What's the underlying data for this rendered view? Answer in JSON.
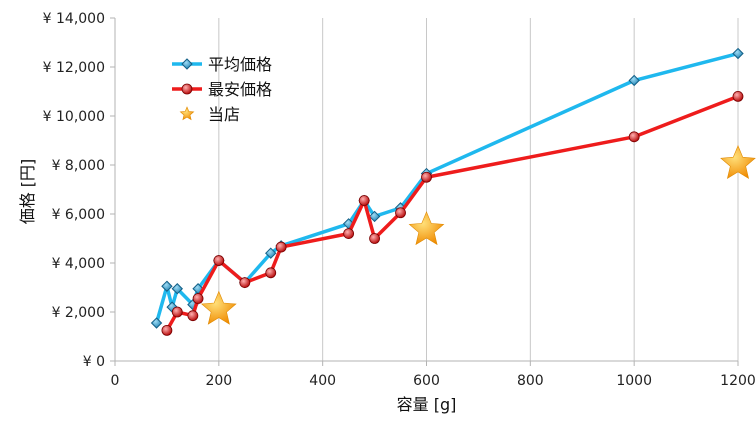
{
  "chart_data": {
    "type": "line",
    "xlabel": "容量 [g]",
    "ylabel": "価格 [円]",
    "xlim": [
      0,
      1200
    ],
    "ylim": [
      0,
      14000
    ],
    "x_ticks": [
      0,
      200,
      400,
      600,
      800,
      1000,
      1200
    ],
    "y_ticks": [
      0,
      2000,
      4000,
      6000,
      8000,
      10000,
      12000,
      14000
    ],
    "x_tick_labels": [
      "0",
      "200",
      "400",
      "600",
      "800",
      "1000",
      "1200"
    ],
    "y_tick_labels": [
      "¥ 0",
      "¥ 2,000",
      "¥ 4,000",
      "¥ 6,000",
      "¥ 8,000",
      "¥ 10,000",
      "¥ 12,000",
      "¥ 14,000"
    ],
    "grid": "vertical",
    "legend_position": "top-left",
    "series": [
      {
        "name": "平均価格",
        "color": "#1fb8ee",
        "marker": "diamond",
        "points": [
          [
            80,
            1550
          ],
          [
            100,
            3050
          ],
          [
            110,
            2200
          ],
          [
            120,
            2950
          ],
          [
            150,
            2300
          ],
          [
            160,
            2950
          ],
          [
            200,
            4100
          ],
          [
            250,
            3200
          ],
          [
            300,
            4400
          ],
          [
            320,
            4700
          ],
          [
            450,
            5600
          ],
          [
            480,
            6550
          ],
          [
            500,
            5900
          ],
          [
            550,
            6250
          ],
          [
            600,
            7650
          ],
          [
            1000,
            11450
          ],
          [
            1200,
            12550
          ]
        ]
      },
      {
        "name": "最安価格",
        "color": "#ee1c1c",
        "marker": "circle",
        "points": [
          [
            100,
            1250
          ],
          [
            120,
            2000
          ],
          [
            150,
            1850
          ],
          [
            160,
            2550
          ],
          [
            200,
            4100
          ],
          [
            250,
            3200
          ],
          [
            300,
            3600
          ],
          [
            320,
            4650
          ],
          [
            450,
            5200
          ],
          [
            480,
            6550
          ],
          [
            500,
            5000
          ],
          [
            550,
            6050
          ],
          [
            600,
            7500
          ],
          [
            1000,
            9150
          ],
          [
            1200,
            10800
          ]
        ]
      },
      {
        "name": "当店",
        "color": "#f7a51d",
        "marker": "star",
        "line": false,
        "points": [
          [
            200,
            2100
          ],
          [
            600,
            5350
          ],
          [
            1200,
            8050
          ]
        ]
      }
    ]
  }
}
